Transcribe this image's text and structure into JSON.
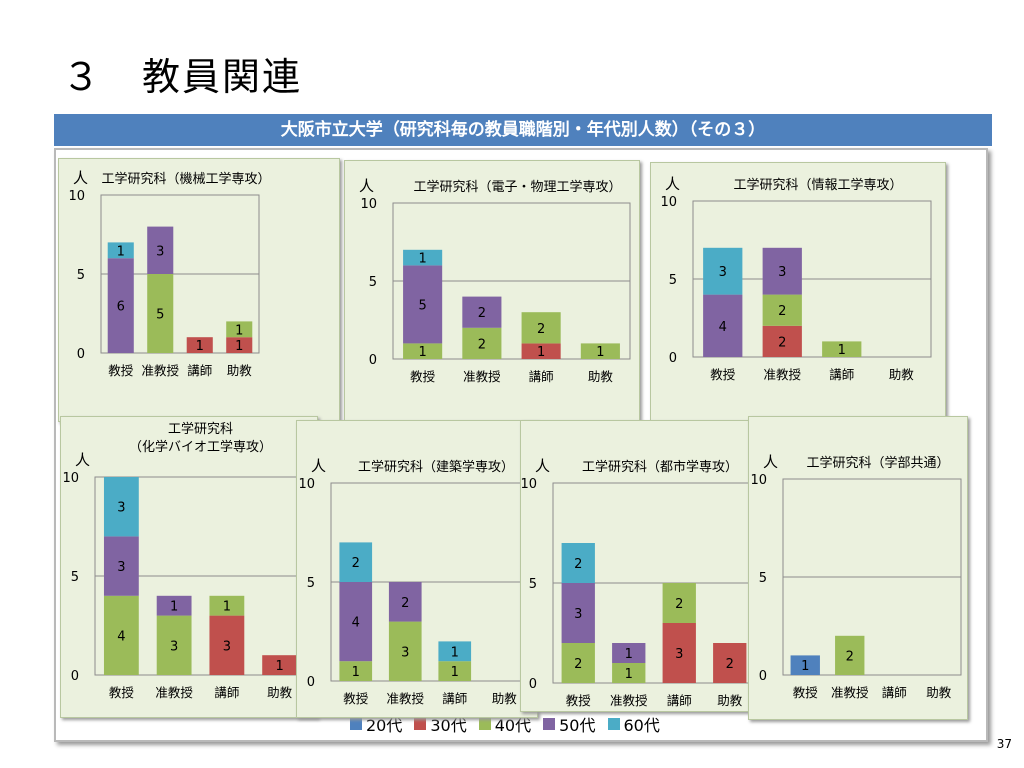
{
  "slide": {
    "title": "３　教員関連",
    "banner": "大阪市立大学（研究科毎の教員職階別・年代別人数）（その３）",
    "page_number": "37"
  },
  "colors": {
    "20代": "#4f81bd",
    "30代": "#c0504d",
    "40代": "#9bbb59",
    "50代": "#8064a2",
    "60代": "#4bacc6"
  },
  "chart_data": [
    {
      "type": "bar",
      "stacked": true,
      "title": "工学研究科（機械工学専攻）",
      "unit_label": "人",
      "categories": [
        "教授",
        "准教授",
        "講師",
        "助教"
      ],
      "ylim": [
        0,
        10
      ],
      "yticks": [
        "0",
        "5",
        "10"
      ],
      "series": [
        {
          "name": "20代",
          "values": [
            0,
            0,
            0,
            0
          ]
        },
        {
          "name": "30代",
          "values": [
            0,
            0,
            1,
            1
          ]
        },
        {
          "name": "40代",
          "values": [
            0,
            5,
            0,
            1
          ]
        },
        {
          "name": "50代",
          "values": [
            6,
            3,
            0,
            0
          ]
        },
        {
          "name": "60代",
          "values": [
            1,
            0,
            0,
            0
          ]
        }
      ]
    },
    {
      "type": "bar",
      "stacked": true,
      "title": "工学研究科（電子・物理工学専攻）",
      "unit_label": "人",
      "categories": [
        "教授",
        "准教授",
        "講師",
        "助教"
      ],
      "ylim": [
        0,
        10
      ],
      "yticks": [
        "0",
        "5",
        "10"
      ],
      "series": [
        {
          "name": "20代",
          "values": [
            0,
            0,
            0,
            0
          ]
        },
        {
          "name": "30代",
          "values": [
            0,
            0,
            1,
            0
          ]
        },
        {
          "name": "40代",
          "values": [
            1,
            2,
            2,
            1
          ]
        },
        {
          "name": "50代",
          "values": [
            5,
            2,
            0,
            0
          ]
        },
        {
          "name": "60代",
          "values": [
            1,
            0,
            0,
            0
          ]
        }
      ]
    },
    {
      "type": "bar",
      "stacked": true,
      "title": "工学研究科（情報工学専攻）",
      "unit_label": "人",
      "categories": [
        "教授",
        "准教授",
        "講師",
        "助教"
      ],
      "ylim": [
        0,
        10
      ],
      "yticks": [
        "0",
        "5",
        "10"
      ],
      "series": [
        {
          "name": "20代",
          "values": [
            0,
            0,
            0,
            0
          ]
        },
        {
          "name": "30代",
          "values": [
            0,
            2,
            0,
            0
          ]
        },
        {
          "name": "40代",
          "values": [
            0,
            2,
            1,
            0
          ]
        },
        {
          "name": "50代",
          "values": [
            4,
            3,
            0,
            0
          ]
        },
        {
          "name": "60代",
          "values": [
            3,
            0,
            0,
            0
          ]
        }
      ]
    },
    {
      "type": "bar",
      "stacked": true,
      "title": "工学研究科",
      "title_line2": "（化学バイオ工学専攻）",
      "unit_label": "人",
      "categories": [
        "教授",
        "准教授",
        "講師",
        "助教"
      ],
      "ylim": [
        0,
        10
      ],
      "yticks": [
        "0",
        "5",
        "10"
      ],
      "series": [
        {
          "name": "20代",
          "values": [
            0,
            0,
            0,
            0
          ]
        },
        {
          "name": "30代",
          "values": [
            0,
            0,
            3,
            1
          ]
        },
        {
          "name": "40代",
          "values": [
            4,
            3,
            1,
            0
          ]
        },
        {
          "name": "50代",
          "values": [
            3,
            1,
            0,
            0
          ]
        },
        {
          "name": "60代",
          "values": [
            3,
            0,
            0,
            0
          ]
        }
      ]
    },
    {
      "type": "bar",
      "stacked": true,
      "title": "工学研究科（建築学専攻）",
      "unit_label": "人",
      "categories": [
        "教授",
        "准教授",
        "講師",
        "助教"
      ],
      "ylim": [
        0,
        10
      ],
      "yticks": [
        "0",
        "5",
        "10"
      ],
      "series": [
        {
          "name": "20代",
          "values": [
            0,
            0,
            0,
            0
          ]
        },
        {
          "name": "30代",
          "values": [
            0,
            0,
            0,
            0
          ]
        },
        {
          "name": "40代",
          "values": [
            1,
            3,
            1,
            0
          ]
        },
        {
          "name": "50代",
          "values": [
            4,
            2,
            0,
            0
          ]
        },
        {
          "name": "60代",
          "values": [
            2,
            0,
            1,
            0
          ]
        }
      ]
    },
    {
      "type": "bar",
      "stacked": true,
      "title": "工学研究科（都市学専攻）",
      "unit_label": "人",
      "categories": [
        "教授",
        "准教授",
        "講師",
        "助教"
      ],
      "ylim": [
        0,
        10
      ],
      "yticks": [
        "0",
        "5",
        "10"
      ],
      "series": [
        {
          "name": "20代",
          "values": [
            0,
            0,
            0,
            0
          ]
        },
        {
          "name": "30代",
          "values": [
            0,
            0,
            3,
            2
          ]
        },
        {
          "name": "40代",
          "values": [
            2,
            1,
            2,
            0
          ]
        },
        {
          "name": "50代",
          "values": [
            3,
            1,
            0,
            0
          ]
        },
        {
          "name": "60代",
          "values": [
            2,
            0,
            0,
            0
          ]
        }
      ]
    },
    {
      "type": "bar",
      "stacked": true,
      "title": "工学研究科（学部共通）",
      "unit_label": "人",
      "categories": [
        "教授",
        "准教授",
        "講師",
        "助教"
      ],
      "ylim": [
        0,
        10
      ],
      "yticks": [
        "0",
        "5",
        "10"
      ],
      "series": [
        {
          "name": "20代",
          "values": [
            1,
            0,
            0,
            0
          ]
        },
        {
          "name": "30代",
          "values": [
            0,
            0,
            0,
            0
          ]
        },
        {
          "name": "40代",
          "values": [
            0,
            2,
            0,
            0
          ]
        },
        {
          "name": "50代",
          "values": [
            0,
            0,
            0,
            0
          ]
        },
        {
          "name": "60代",
          "values": [
            0,
            0,
            0,
            0
          ]
        }
      ]
    }
  ],
  "legend": [
    {
      "label": "20代",
      "color": "#4f81bd"
    },
    {
      "label": "30代",
      "color": "#c0504d"
    },
    {
      "label": "40代",
      "color": "#9bbb59"
    },
    {
      "label": "50代",
      "color": "#8064a2"
    },
    {
      "label": "60代",
      "color": "#4bacc6"
    }
  ]
}
